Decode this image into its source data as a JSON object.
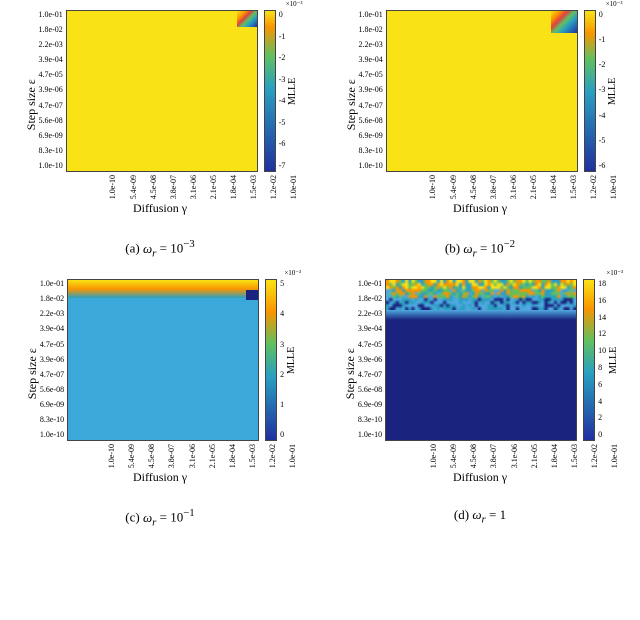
{
  "axis": {
    "xlabel": "Diffusion γ",
    "ylabel": "Step size ε",
    "cbar_label": "MLLE",
    "yticks": [
      "1.0e-01",
      "1.8e-02",
      "2.2e-03",
      "3.9e-04",
      "4.7e-05",
      "3.9e-06",
      "4.7e-07",
      "5.6e-08",
      "6.9e-09",
      "8.3e-10",
      "1.0e-10"
    ],
    "xticks": [
      "1.0e-10",
      "5.4e-09",
      "4.5e-08",
      "3.8e-07",
      "3.1e-06",
      "2.1e-05",
      "1.8e-04",
      "1.5e-03",
      "1.2e-02",
      "1.0e-01"
    ]
  },
  "panels": {
    "a": {
      "caption_prefix": "(a) ",
      "caption_math": "ω",
      "caption_sub": "r",
      "caption_eq": " = 10",
      "caption_sup": "−3",
      "background_color": "#f9e215",
      "cbar_gradient": "linear-gradient(to bottom, #f9e215 0%, #f99500 10%, #60c060 28%, #2aa0c0 48%, #2030a0 100%)",
      "cbar_ticks": [
        "0",
        "-1",
        "-2",
        "-3",
        "-4",
        "-5",
        "-6",
        "-7"
      ],
      "cbar_exp": "×10⁻³"
    },
    "b": {
      "caption_prefix": "(b) ",
      "caption_math": "ω",
      "caption_sub": "r",
      "caption_eq": " = 10",
      "caption_sup": "−2",
      "background_color": "#f9e215",
      "cbar_gradient": "linear-gradient(to bottom, #f9e215 0%, #f99500 14%, #60c060 30%, #2aa0c0 50%, #2030a0 100%)",
      "cbar_ticks": [
        "0",
        "-1",
        "-2",
        "-3",
        "-4",
        "-5",
        "-6"
      ],
      "cbar_exp": "×10⁻³"
    },
    "c": {
      "caption_prefix": "(c) ",
      "caption_math": "ω",
      "caption_sub": "r",
      "caption_eq": " = 10",
      "caption_sup": "−1",
      "background_color": "#3aa8d8",
      "cbar_gradient": "linear-gradient(to bottom, #f9e215 0%, #f99500 20%, #60c060 40%, #2aa0c0 60%, #2030a0 100%)",
      "cbar_ticks": [
        "5",
        "4",
        "3",
        "2",
        "1",
        "0"
      ],
      "cbar_exp": "×10⁻³"
    },
    "d": {
      "caption_prefix": "(d) ",
      "caption_math": "ω",
      "caption_sub": "r",
      "caption_eq": " = 1",
      "caption_sup": "",
      "background_color": "#1a237e",
      "cbar_gradient": "linear-gradient(to bottom, #f9e215 0%, #f99500 18%, #60c060 38%, #2aa0c0 58%, #2030a0 100%)",
      "cbar_ticks": [
        "18",
        "16",
        "14",
        "12",
        "10",
        "8",
        "6",
        "4",
        "2",
        "0"
      ],
      "cbar_exp": "×10⁻³"
    }
  }
}
